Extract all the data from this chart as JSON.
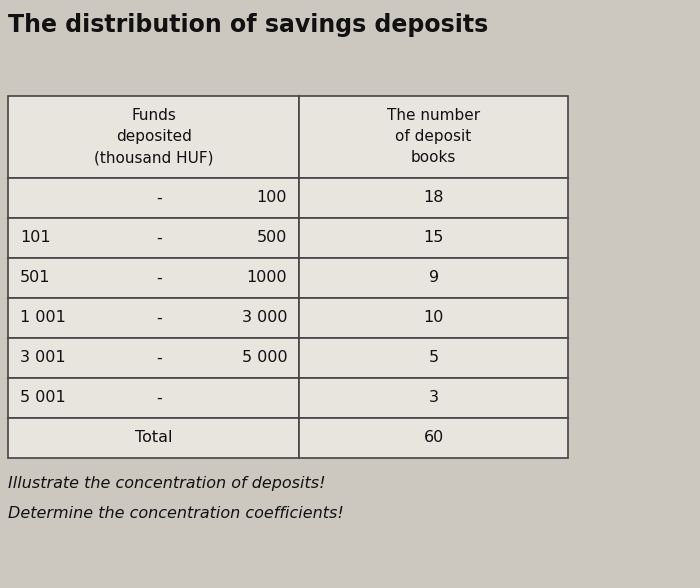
{
  "title": "The distribution of savings deposits",
  "title_fontsize": 17,
  "title_fontweight": "bold",
  "col_headers": [
    "Funds\ndeposited\n(thousand HUF)",
    "The number\nof deposit\nbooks"
  ],
  "rows_left": [
    [
      "",
      "-",
      "100"
    ],
    [
      "101",
      "-",
      "500"
    ],
    [
      "501",
      "-",
      "1000"
    ],
    [
      "1 001",
      "-",
      "3 000"
    ],
    [
      "3 001",
      "-",
      "5 000"
    ],
    [
      "5 001",
      "-",
      ""
    ],
    [
      "",
      "Total",
      ""
    ]
  ],
  "rows_right": [
    "18",
    "15",
    "9",
    "10",
    "5",
    "3",
    "60"
  ],
  "footer_lines": [
    "Illustrate the concentration of deposits!",
    "Determine the concentration coefficients!"
  ],
  "footer_fontsize": 11.5,
  "bg_color": "#ccc8c0",
  "table_bg": "#e8e4de",
  "border_color": "#444444",
  "text_color": "#111111"
}
